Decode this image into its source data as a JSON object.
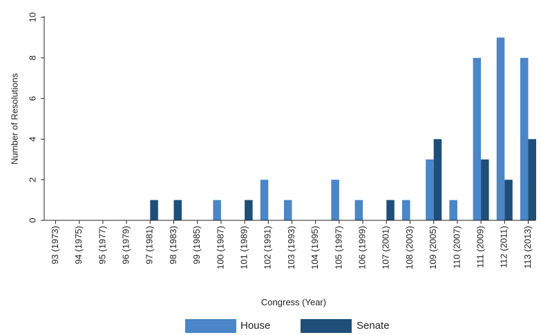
{
  "chart_data": {
    "type": "bar",
    "title": "",
    "xlabel": "Congress (Year)",
    "ylabel": "Number of Resolutions",
    "ylim": [
      0,
      10
    ],
    "yticks": [
      0,
      2,
      4,
      6,
      8,
      10
    ],
    "grid": false,
    "legend_position": "bottom",
    "categories": [
      "93 (1973)",
      "94 (1975)",
      "95 (1977)",
      "96 (1979)",
      "97 (1981)",
      "98 (1983)",
      "99 (1985)",
      "100 (1987)",
      "101 (1989)",
      "102 (1991)",
      "103 (1993)",
      "104 (1995)",
      "105 (1997)",
      "106 (1999)",
      "107 (2001)",
      "108 (2003)",
      "109 (2005)",
      "110 (2007)",
      "111 (2009)",
      "112 (2011)",
      "113 (2013)"
    ],
    "series": [
      {
        "name": "House",
        "color": "#4a86c8",
        "values": [
          0,
          0,
          0,
          0,
          0,
          0,
          0,
          1,
          0,
          2,
          1,
          0,
          2,
          1,
          0,
          1,
          3,
          1,
          8,
          9,
          8
        ]
      },
      {
        "name": "Senate",
        "color": "#1f4e79",
        "values": [
          0,
          0,
          0,
          0,
          1,
          1,
          0,
          0,
          1,
          0,
          0,
          0,
          0,
          0,
          1,
          0,
          4,
          0,
          3,
          2,
          4
        ]
      }
    ]
  }
}
